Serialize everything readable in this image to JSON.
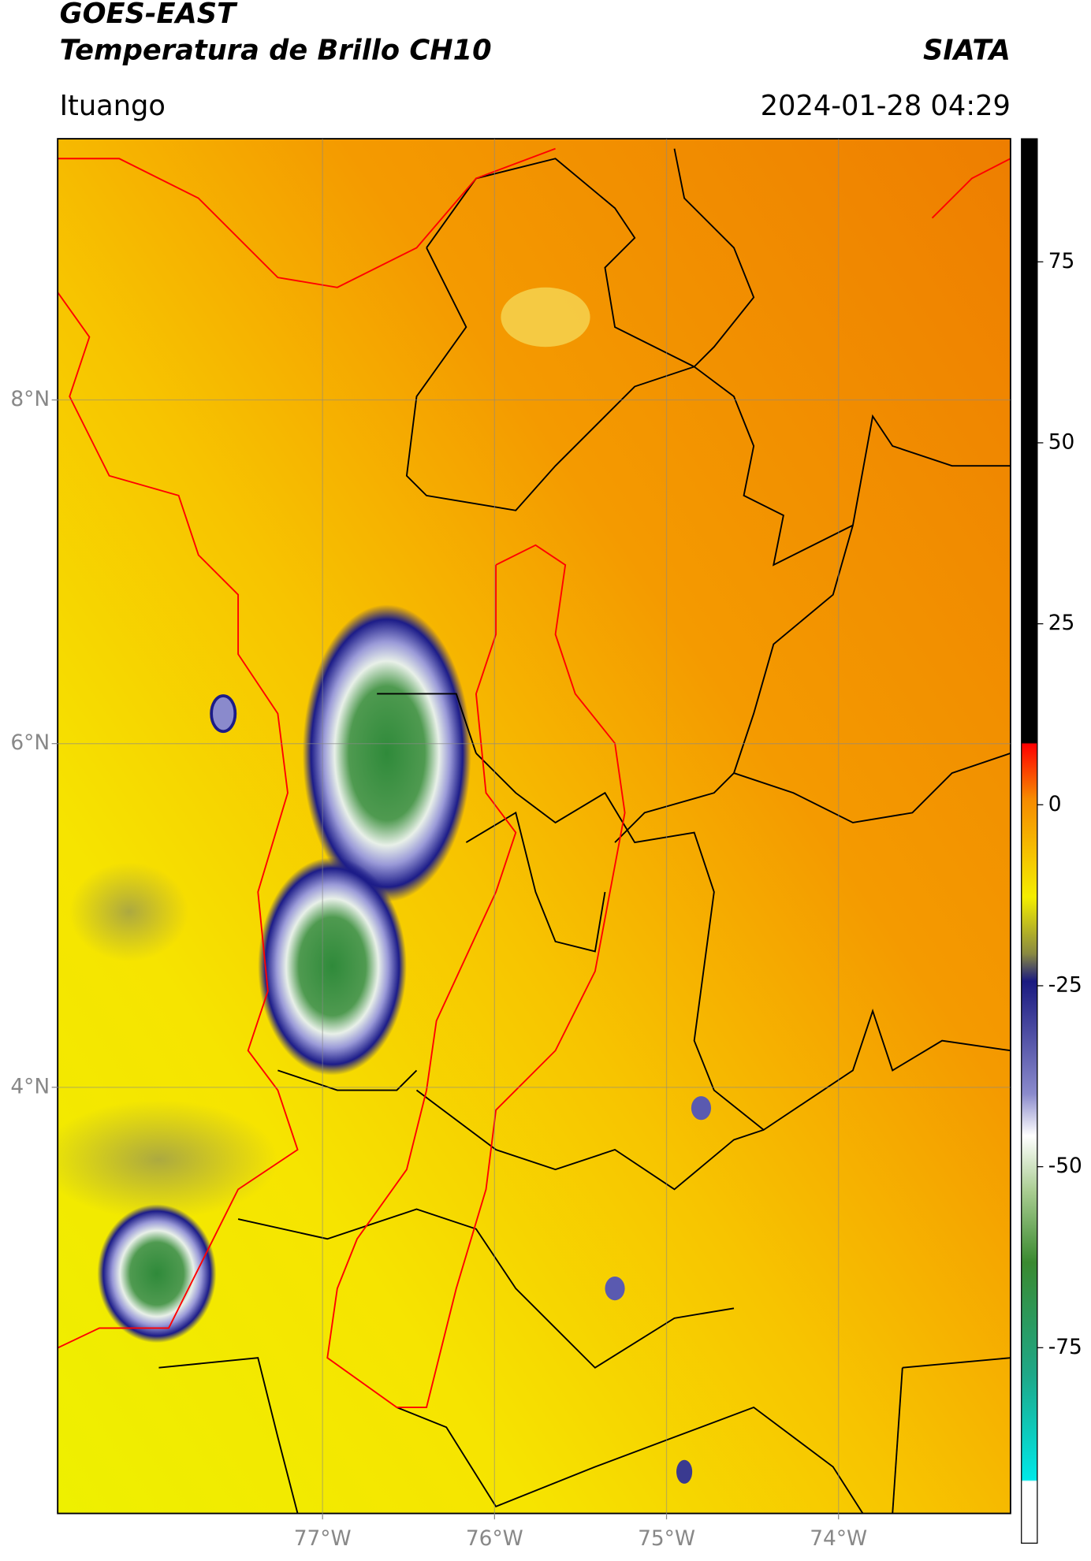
{
  "header": {
    "title": "GOES-EAST",
    "subtitle": "Temperatura de Brillo CH10",
    "source": "SIATA",
    "location": "Ituango",
    "timestamp": "2024-01-28 04:29"
  },
  "map": {
    "xlim": [
      -78.54,
      -73.0
    ],
    "ylim": [
      1.52,
      9.52
    ],
    "xticks": [
      {
        "value": -77,
        "label": "77°W"
      },
      {
        "value": -76,
        "label": "76°W"
      },
      {
        "value": -75,
        "label": "75°W"
      },
      {
        "value": -74,
        "label": "74°W"
      }
    ],
    "yticks": [
      {
        "value": 8,
        "label": "8°N"
      },
      {
        "value": 6,
        "label": "6°N"
      },
      {
        "value": 4,
        "label": "4°N"
      }
    ],
    "grid": true
  },
  "colorbar": {
    "lim": [
      -102,
      92
    ],
    "ticks": [
      75,
      50,
      25,
      0,
      -25,
      -50,
      -75
    ]
  }
}
